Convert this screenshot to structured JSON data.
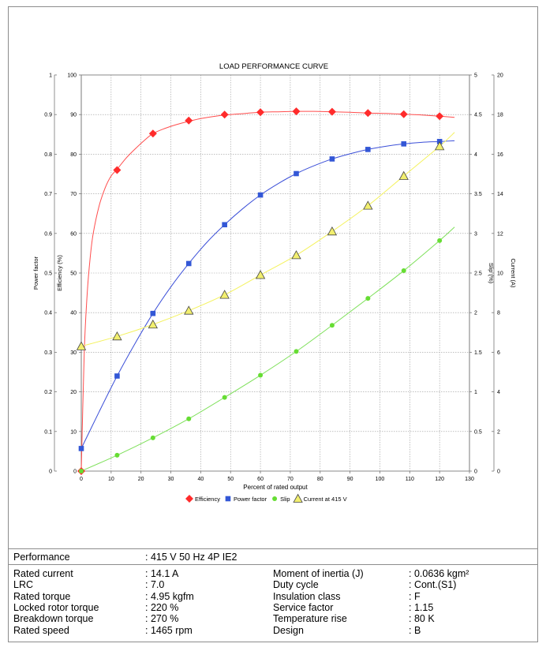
{
  "chart_data": {
    "type": "line",
    "title": "LOAD PERFORMANCE CURVE",
    "xlabel": "Percent of rated output",
    "xlim": [
      0,
      130
    ],
    "x_ticks": [
      "0",
      "10",
      "20",
      "30",
      "40",
      "50",
      "60",
      "70",
      "80",
      "90",
      "100",
      "110",
      "120",
      "130"
    ],
    "axes": {
      "power_factor": {
        "label": "Power factor",
        "range": [
          0,
          1
        ],
        "ticks": [
          "0",
          "0.1",
          "0.2",
          "0.3",
          "0.4",
          "0.5",
          "0.6",
          "0.7",
          "0.8",
          "0.9",
          "1"
        ]
      },
      "efficiency": {
        "label": "Efficiency (%)",
        "range": [
          0,
          100
        ],
        "ticks": [
          "0",
          "10",
          "20",
          "30",
          "40",
          "50",
          "60",
          "70",
          "80",
          "90",
          "100"
        ]
      },
      "slip": {
        "label": "Slip (%)",
        "range": [
          0,
          5
        ],
        "ticks": [
          "0",
          "0.5",
          "1",
          "1.5",
          "2",
          "2.5",
          "3",
          "3.5",
          "4",
          "4.5",
          "5"
        ]
      },
      "current": {
        "label": "Current (A)",
        "range": [
          0,
          20
        ],
        "ticks": [
          "0",
          "2",
          "4",
          "6",
          "8",
          "10",
          "12",
          "14",
          "16",
          "18",
          "20"
        ]
      }
    },
    "grid": true,
    "legend_position": "bottom",
    "series": [
      {
        "name": "Efficiency",
        "axis": "efficiency",
        "color": "#ff2b2b",
        "line_color": "#ff4d4d",
        "marker": "diamond",
        "x": [
          0,
          12,
          24,
          36,
          48,
          60,
          72,
          84,
          96,
          108,
          120
        ],
        "y": [
          0,
          76,
          85.2,
          88.5,
          90,
          90.6,
          90.8,
          90.7,
          90.4,
          90.1,
          89.6
        ],
        "curve_x": [
          0,
          1,
          2,
          3,
          4,
          6,
          8,
          10,
          12,
          15,
          18,
          21,
          24,
          28,
          32,
          36,
          40,
          45,
          50,
          55,
          60,
          66,
          72,
          78,
          84,
          90,
          96,
          102,
          108,
          114,
          120,
          125
        ],
        "curve_y": [
          0,
          30,
          45,
          54,
          60,
          67,
          71.5,
          74.5,
          76.2,
          79,
          81.3,
          83.4,
          85.2,
          86.5,
          87.5,
          88.3,
          89,
          89.6,
          90,
          90.3,
          90.6,
          90.7,
          90.8,
          90.8,
          90.7,
          90.6,
          90.4,
          90.3,
          90.1,
          89.9,
          89.6,
          89.3
        ]
      },
      {
        "name": "Power factor",
        "axis": "power_factor",
        "color": "#3357d6",
        "line_color": "#3b4fd8",
        "marker": "square",
        "x": [
          0,
          12,
          24,
          36,
          48,
          60,
          72,
          84,
          96,
          108,
          120
        ],
        "y": [
          0.057,
          0.24,
          0.398,
          0.524,
          0.622,
          0.697,
          0.751,
          0.788,
          0.812,
          0.826,
          0.832
        ],
        "curve_x": [
          0,
          6,
          12,
          18,
          24,
          30,
          36,
          42,
          48,
          54,
          60,
          66,
          72,
          78,
          84,
          90,
          96,
          102,
          108,
          114,
          120,
          125
        ],
        "curve_y": [
          0.057,
          0.15,
          0.24,
          0.322,
          0.398,
          0.465,
          0.524,
          0.577,
          0.622,
          0.662,
          0.697,
          0.726,
          0.751,
          0.771,
          0.788,
          0.801,
          0.812,
          0.82,
          0.826,
          0.83,
          0.832,
          0.834
        ]
      },
      {
        "name": "Slip",
        "axis": "slip",
        "color": "#66dd33",
        "line_color": "#7ee05a",
        "marker": "circle",
        "x": [
          0,
          12,
          24,
          36,
          48,
          60,
          72,
          84,
          96,
          108,
          120
        ],
        "y": [
          0,
          0.2,
          0.42,
          0.66,
          0.93,
          1.21,
          1.51,
          1.84,
          2.18,
          2.53,
          2.91
        ],
        "curve_x": [
          0,
          12,
          24,
          36,
          48,
          60,
          72,
          84,
          96,
          108,
          120,
          125
        ],
        "curve_y": [
          0,
          0.2,
          0.42,
          0.66,
          0.93,
          1.21,
          1.51,
          1.84,
          2.18,
          2.53,
          2.91,
          3.08
        ]
      },
      {
        "name": "Current at 415 V",
        "axis": "current",
        "color": "#f2ef6e",
        "line_color": "#f4f25e",
        "marker": "triangle",
        "x": [
          0,
          12,
          24,
          36,
          48,
          60,
          72,
          84,
          96,
          108,
          120
        ],
        "y": [
          6.3,
          6.8,
          7.4,
          8.1,
          8.9,
          9.9,
          10.9,
          12.1,
          13.4,
          14.9,
          16.4
        ],
        "curve_x": [
          0,
          12,
          24,
          36,
          48,
          60,
          72,
          84,
          96,
          108,
          120,
          125
        ],
        "curve_y": [
          6.3,
          6.8,
          7.4,
          8.1,
          8.9,
          9.9,
          10.9,
          12.1,
          13.4,
          14.9,
          16.4,
          17.1
        ]
      }
    ]
  },
  "specs": {
    "performance_label": "Performance",
    "performance_value": ": 415 V 50 Hz 4P IE2",
    "left": [
      {
        "label": "Rated current",
        "value": ": 14.1 A"
      },
      {
        "label": "LRC",
        "value": ": 7.0"
      },
      {
        "label": "Rated torque",
        "value": ": 4.95 kgfm"
      },
      {
        "label": "Locked rotor torque",
        "value": ": 220 %"
      },
      {
        "label": "Breakdown torque",
        "value": ": 270 %"
      },
      {
        "label": "Rated speed",
        "value": ": 1465 rpm"
      }
    ],
    "right": [
      {
        "label": "Moment of inertia (J)",
        "value": ": 0.0636 kgm²"
      },
      {
        "label": "Duty cycle",
        "value": ": Cont.(S1)"
      },
      {
        "label": "Insulation class",
        "value": ": F"
      },
      {
        "label": "Service factor",
        "value": ": 1.15"
      },
      {
        "label": "Temperature rise",
        "value": ": 80 K"
      },
      {
        "label": "Design",
        "value": ": B"
      }
    ]
  }
}
